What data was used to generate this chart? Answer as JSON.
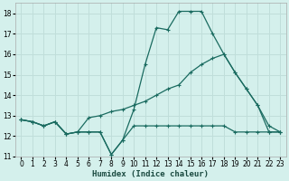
{
  "xlabel": "Humidex (Indice chaleur)",
  "xlim": [
    -0.5,
    23.5
  ],
  "ylim": [
    11,
    18.5
  ],
  "yticks": [
    11,
    12,
    13,
    14,
    15,
    16,
    17,
    18
  ],
  "xticks": [
    0,
    1,
    2,
    3,
    4,
    5,
    6,
    7,
    8,
    9,
    10,
    11,
    12,
    13,
    14,
    15,
    16,
    17,
    18,
    19,
    20,
    21,
    22,
    23
  ],
  "bg_color": "#d4f0ec",
  "grid_color": "#c0deda",
  "line_color": "#1a6b60",
  "line1_x": [
    0,
    1,
    2,
    3,
    4,
    5,
    6,
    7,
    8,
    9,
    10,
    11,
    12,
    13,
    14,
    15,
    16,
    17,
    18,
    19,
    20,
    21,
    22,
    23
  ],
  "line1_y": [
    12.8,
    12.7,
    12.5,
    12.7,
    12.1,
    12.2,
    12.2,
    12.2,
    11.1,
    11.8,
    12.5,
    12.5,
    12.5,
    12.5,
    12.5,
    12.5,
    12.5,
    12.5,
    12.5,
    12.2,
    12.2,
    12.2,
    12.2,
    12.2
  ],
  "line2_x": [
    0,
    1,
    2,
    3,
    4,
    5,
    6,
    7,
    8,
    9,
    10,
    11,
    12,
    13,
    14,
    15,
    16,
    17,
    18,
    19,
    20,
    21,
    22,
    23
  ],
  "line2_y": [
    12.8,
    12.7,
    12.5,
    12.7,
    12.1,
    12.2,
    12.2,
    12.2,
    11.1,
    11.8,
    13.3,
    15.5,
    17.3,
    17.2,
    18.1,
    18.1,
    18.1,
    17.0,
    16.0,
    15.1,
    14.3,
    13.5,
    12.2,
    12.2
  ],
  "line3_x": [
    0,
    1,
    2,
    3,
    4,
    5,
    6,
    7,
    8,
    9,
    10,
    11,
    12,
    13,
    14,
    15,
    16,
    17,
    18,
    19,
    20,
    21,
    22,
    23
  ],
  "line3_y": [
    12.8,
    12.7,
    12.5,
    12.7,
    12.1,
    12.2,
    12.9,
    13.0,
    13.2,
    13.3,
    13.5,
    13.7,
    14.0,
    14.3,
    14.5,
    15.1,
    15.5,
    15.8,
    16.0,
    15.1,
    14.3,
    13.5,
    12.5,
    12.2
  ],
  "xlabel_color": "#1a4a40",
  "xlabel_fontsize": 6.5,
  "tick_fontsize": 5.5,
  "lw": 0.9,
  "ms": 2.5
}
